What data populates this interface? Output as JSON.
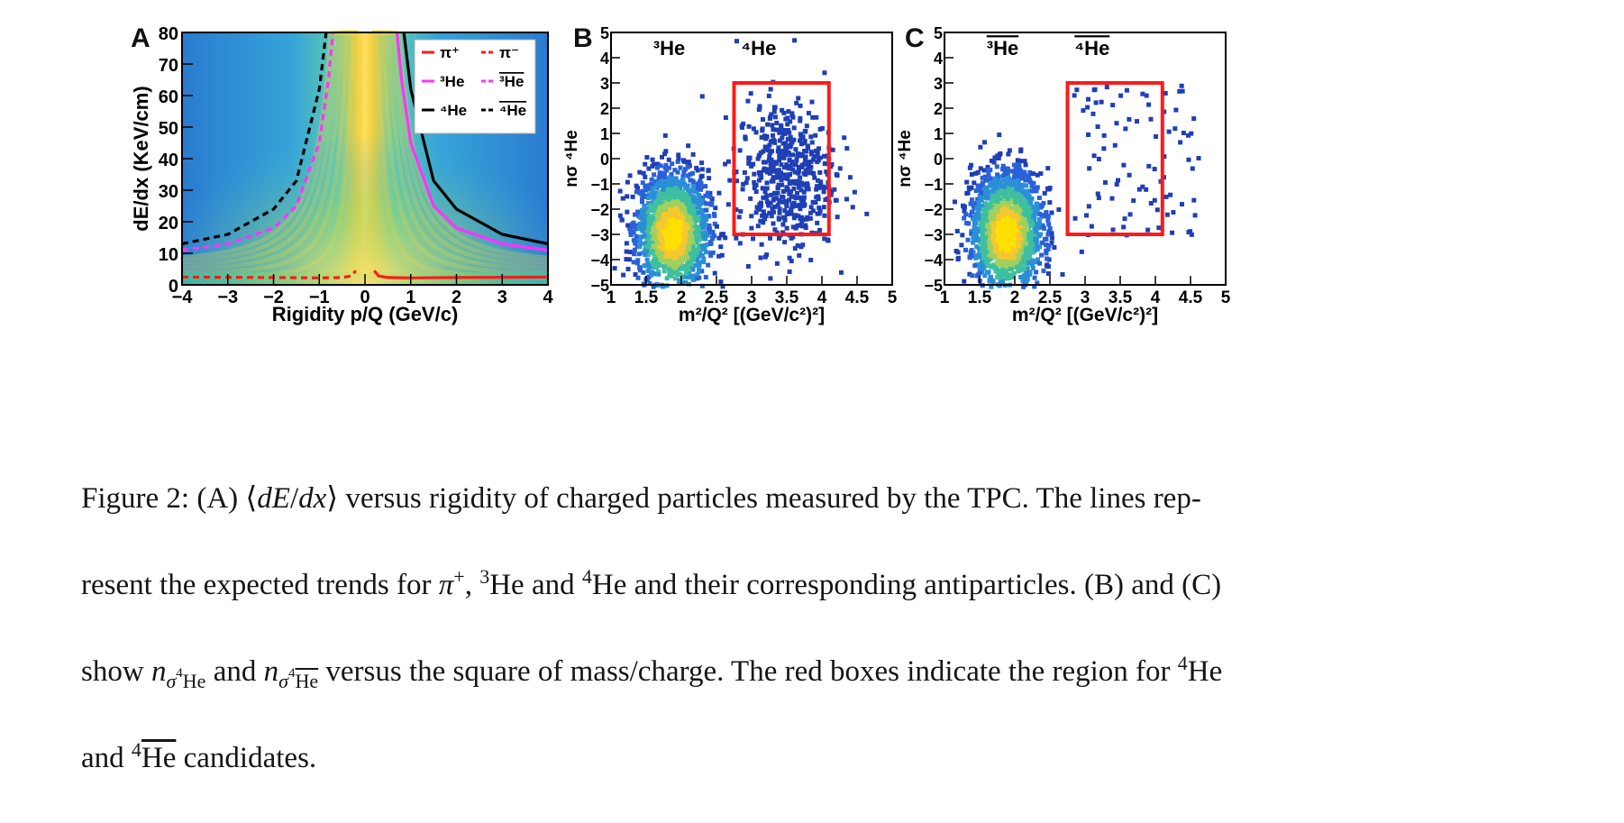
{
  "panel_a": {
    "letter": "A",
    "xlabel": "Rigidity p/Q (GeV/c)",
    "ylabel": "dE/dx (KeV/cm)",
    "legend": [
      {
        "label": "π+",
        "color": "#ff1a1a",
        "dash": false
      },
      {
        "label": "π-",
        "color": "#ff1a1a",
        "dash": true
      },
      {
        "label": "3He",
        "color": "#ff33ff",
        "dash": false
      },
      {
        "label": "3He-bar",
        "color": "#ff33ff",
        "dash": true
      },
      {
        "label": "4He",
        "color": "#000000",
        "dash": false
      },
      {
        "label": "4He-bar",
        "color": "#000000",
        "dash": true
      }
    ]
  },
  "panel_b": {
    "letter": "B",
    "label_3": "He",
    "label_4": "He",
    "xlabel": "m²/Q² [(GeV/c²)²]",
    "ylabel": "n σ 4He"
  },
  "panel_c": {
    "letter": "C",
    "label_3": "He",
    "label_4": "He",
    "xlabel": "m²/Q² [(GeV/c²)²]",
    "ylabel": "n σ 4He-bar"
  },
  "caption": {
    "fig_label": "Figure 2:",
    "p1": "(A)",
    "p2": "versus rigidity of charged particles measured by the TPC. The lines rep-",
    "p3": "resent the expected trends for",
    "p4": "He and",
    "p5": "He and their corresponding antiparticles. (B) and (C)",
    "p6": "show",
    "p7": "and",
    "p8": "versus the square of mass/charge. The red boxes indicate the region for",
    "p9": "He",
    "p10": "and",
    "p11": "He",
    "p12": "candidates."
  },
  "chart_data": [
    {
      "type": "heatmap",
      "panel": "A",
      "xlabel": "Rigidity p/Q (GeV/c)",
      "ylabel": "dE/dx (KeV/cm)",
      "xlim": [
        -4,
        4
      ],
      "ylim": [
        0,
        80
      ],
      "xticks": [
        -4,
        -3,
        -2,
        -1,
        0,
        1,
        2,
        3,
        4
      ],
      "yticks": [
        0,
        10,
        20,
        30,
        40,
        50,
        60,
        70,
        80
      ],
      "series": [
        {
          "name": "π+",
          "style": "solid",
          "color": "#ff1a1a",
          "x": [
            0.2,
            0.3,
            0.5,
            1,
            2,
            3,
            4
          ],
          "y": [
            4.5,
            2.8,
            2.3,
            2.2,
            2.3,
            2.4,
            2.5
          ]
        },
        {
          "name": "π-",
          "style": "dashed",
          "color": "#ff1a1a",
          "x": [
            -4,
            -3,
            -2,
            -1,
            -0.5,
            -0.3,
            -0.2
          ],
          "y": [
            2.5,
            2.4,
            2.3,
            2.2,
            2.3,
            2.8,
            4.5
          ]
        },
        {
          "name": "3He",
          "style": "solid",
          "color": "#ff33ff",
          "x": [
            0.7,
            0.8,
            1,
            1.5,
            2,
            3,
            4
          ],
          "y": [
            80,
            65,
            45,
            25,
            18,
            13,
            11
          ]
        },
        {
          "name": "3He-bar",
          "style": "dashed",
          "color": "#ff33ff",
          "x": [
            -4,
            -3,
            -2,
            -1.5,
            -1,
            -0.8,
            -0.7
          ],
          "y": [
            11,
            13,
            18,
            25,
            45,
            65,
            80
          ]
        },
        {
          "name": "4He",
          "style": "solid",
          "color": "#000000",
          "x": [
            0.85,
            1,
            1.5,
            2,
            3,
            4
          ],
          "y": [
            80,
            62,
            33,
            24,
            16,
            13
          ]
        },
        {
          "name": "4He-bar",
          "style": "dashed",
          "color": "#000000",
          "x": [
            -4,
            -3,
            -2,
            -1.5,
            -1,
            -0.85
          ],
          "y": [
            13,
            16,
            24,
            33,
            62,
            80
          ]
        }
      ]
    },
    {
      "type": "scatter",
      "panel": "B",
      "xlabel": "m²/Q² [(GeV/c²)²]",
      "xlim": [
        1,
        5
      ],
      "ylim": [
        -5,
        5
      ],
      "xticks": [
        1,
        1.5,
        2,
        2.5,
        3,
        3.5,
        4,
        4.5,
        5
      ],
      "yticks": [
        -5,
        -4,
        -3,
        -2,
        -1,
        0,
        1,
        2,
        3,
        4,
        5
      ],
      "clusters": [
        {
          "name": "3He",
          "x": 1.85,
          "y": -3
        },
        {
          "name": "4He",
          "x": 3.5,
          "y": -1
        }
      ],
      "box": {
        "x": [
          2.75,
          4.1
        ],
        "y": [
          -3,
          3
        ],
        "color": "#ff1a1a"
      }
    },
    {
      "type": "scatter",
      "panel": "C",
      "xlabel": "m²/Q² [(GeV/c²)²]",
      "xlim": [
        1,
        5
      ],
      "ylim": [
        -5,
        5
      ],
      "xticks": [
        1,
        1.5,
        2,
        2.5,
        3,
        3.5,
        4,
        4.5,
        5
      ],
      "yticks": [
        -5,
        -4,
        -3,
        -2,
        -1,
        0,
        1,
        2,
        3,
        4,
        5
      ],
      "clusters": [
        {
          "name": "3He-bar",
          "x": 1.85,
          "y": -3
        }
      ],
      "box": {
        "x": [
          2.75,
          4.1
        ],
        "y": [
          -3,
          3
        ],
        "color": "#ff1a1a"
      }
    }
  ]
}
